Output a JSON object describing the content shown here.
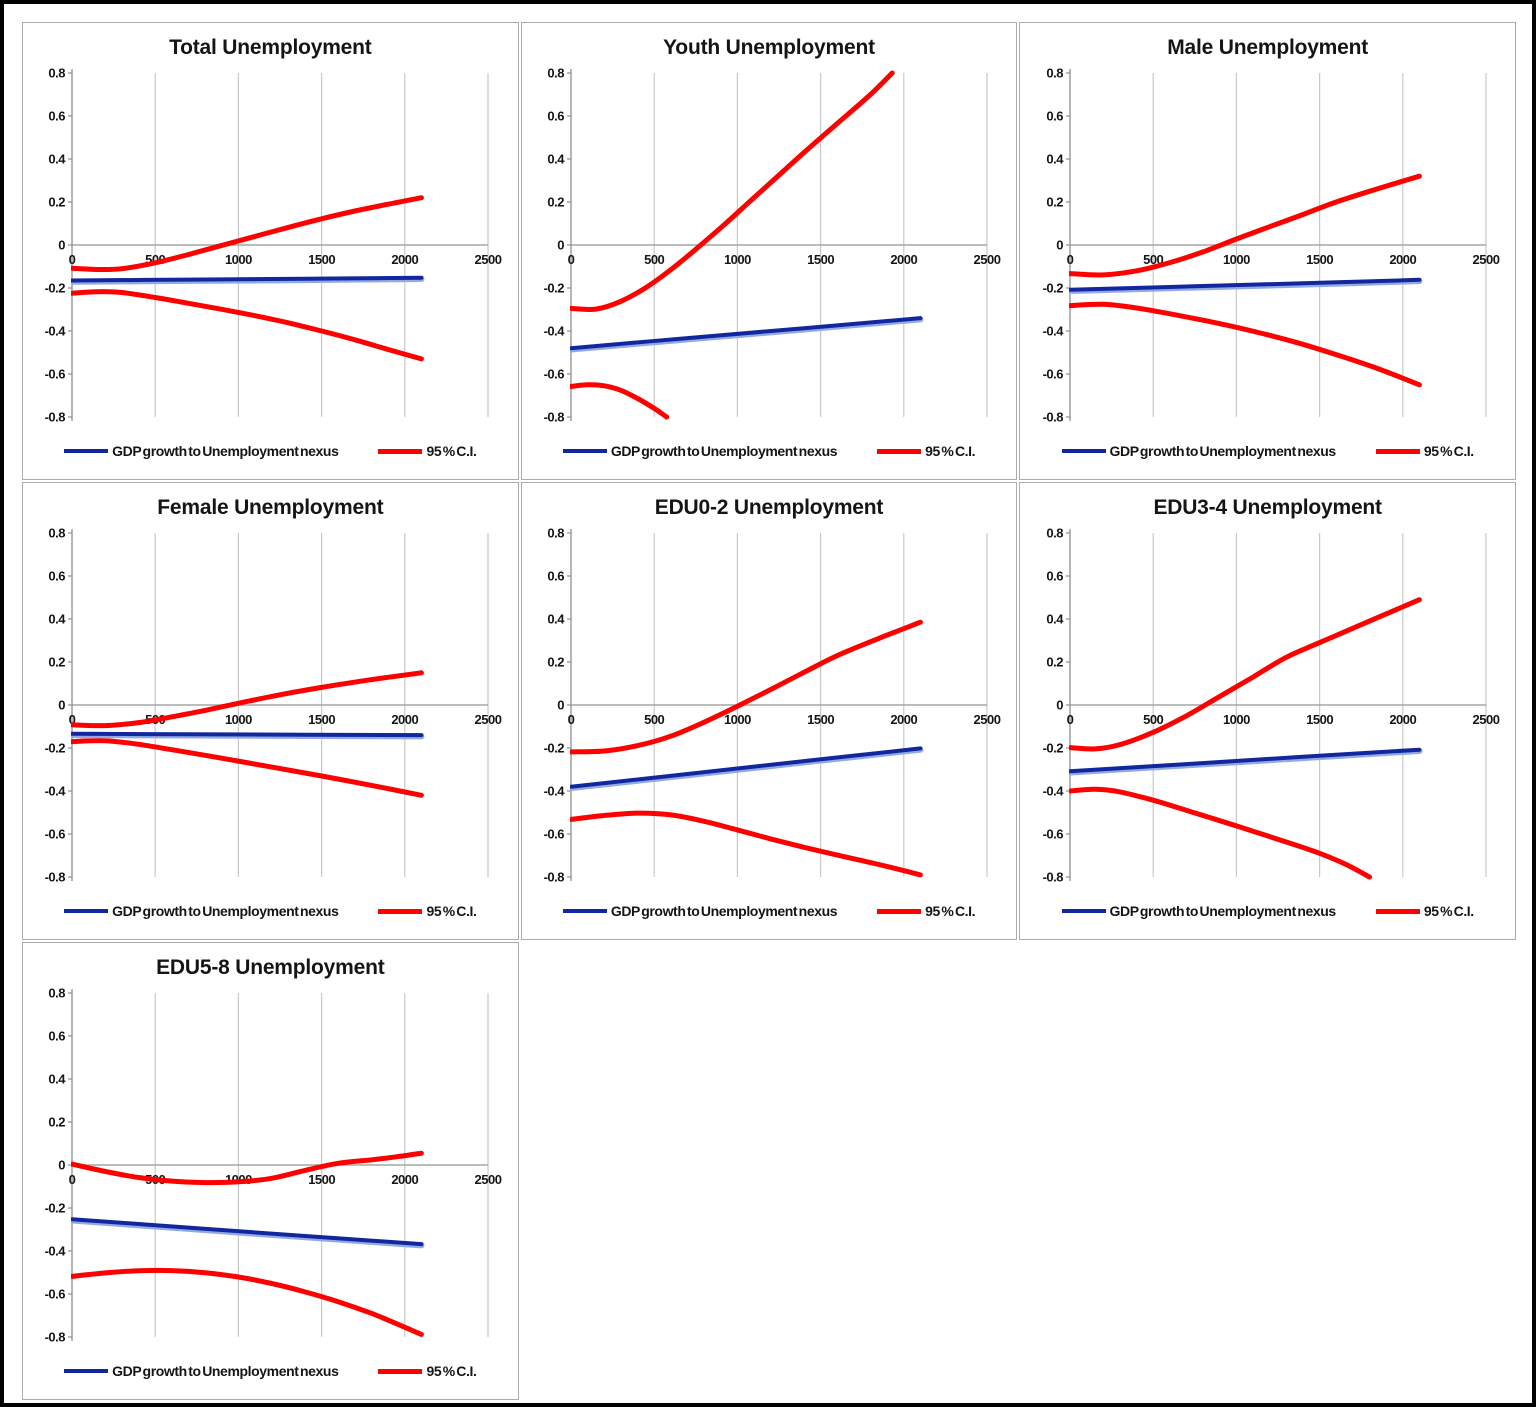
{
  "page": {
    "background": "#ffffff",
    "outer_border_color": "#000000",
    "panel_border_color": "#ababab"
  },
  "legend": {
    "series1_label": "GDP growth to Unemployment nexus",
    "series2_label": "95 % C.I.",
    "series1_color": "#12279e",
    "series2_color": "#fe0000"
  },
  "axes": {
    "xlim": [
      0,
      2500
    ],
    "ylim": [
      -0.8,
      0.8
    ],
    "x_ticks": [
      0,
      500,
      1000,
      1500,
      2000,
      2500
    ],
    "y_ticks": [
      0.8,
      0.6,
      0.4,
      0.2,
      0,
      -0.2,
      -0.4,
      -0.6,
      -0.8
    ],
    "grid": "vertical-gridlines-and-zero-line",
    "gridline_color": "#c9c9c9",
    "axis_color": "#8f8f8f",
    "zero_line_color": "#a6a6a6",
    "tick_label_color": "#151515"
  },
  "chart_data": [
    {
      "type": "line",
      "title": "Total Unemployment",
      "series": [
        {
          "name": "GDP growth to Unemployment nexus",
          "role": "nexus",
          "points": [
            [
              0,
              -0.165
            ],
            [
              700,
              -0.161
            ],
            [
              1400,
              -0.157
            ],
            [
              2100,
              -0.152
            ]
          ]
        },
        {
          "name": "95 % C.I. upper",
          "role": "ci",
          "points": [
            [
              0,
              -0.108
            ],
            [
              150,
              -0.114
            ],
            [
              300,
              -0.11
            ],
            [
              500,
              -0.083
            ],
            [
              700,
              -0.044
            ],
            [
              900,
              -0.002
            ],
            [
              1100,
              0.04
            ],
            [
              1300,
              0.082
            ],
            [
              1500,
              0.122
            ],
            [
              1700,
              0.158
            ],
            [
              1900,
              0.19
            ],
            [
              2100,
              0.22
            ]
          ]
        },
        {
          "name": "95 % C.I. lower",
          "role": "ci",
          "points": [
            [
              0,
              -0.224
            ],
            [
              150,
              -0.217
            ],
            [
              300,
              -0.221
            ],
            [
              500,
              -0.244
            ],
            [
              700,
              -0.271
            ],
            [
              900,
              -0.299
            ],
            [
              1100,
              -0.329
            ],
            [
              1300,
              -0.362
            ],
            [
              1500,
              -0.4
            ],
            [
              1700,
              -0.441
            ],
            [
              1900,
              -0.486
            ],
            [
              2100,
              -0.53
            ]
          ]
        }
      ]
    },
    {
      "type": "line",
      "title": "Youth Unemployment",
      "series": [
        {
          "name": "GDP growth to Unemployment nexus",
          "role": "nexus",
          "points": [
            [
              0,
              -0.48
            ],
            [
              700,
              -0.433
            ],
            [
              1400,
              -0.387
            ],
            [
              2100,
              -0.34
            ]
          ]
        },
        {
          "name": "95 % C.I. upper",
          "role": "ci",
          "points": [
            [
              0,
              -0.295
            ],
            [
              150,
              -0.298
            ],
            [
              300,
              -0.262
            ],
            [
              450,
              -0.198
            ],
            [
              600,
              -0.115
            ],
            [
              750,
              -0.02
            ],
            [
              900,
              0.08
            ],
            [
              1050,
              0.185
            ],
            [
              1200,
              0.29
            ],
            [
              1400,
              0.43
            ],
            [
              1600,
              0.565
            ],
            [
              1800,
              0.7
            ],
            [
              1930,
              0.8
            ]
          ]
        },
        {
          "name": "95 % C.I. lower",
          "role": "ci",
          "points": [
            [
              0,
              -0.658
            ],
            [
              100,
              -0.65
            ],
            [
              200,
              -0.655
            ],
            [
              300,
              -0.676
            ],
            [
              400,
              -0.714
            ],
            [
              500,
              -0.76
            ],
            [
              575,
              -0.8
            ]
          ]
        }
      ]
    },
    {
      "type": "line",
      "title": "Male Unemployment",
      "series": [
        {
          "name": "GDP growth to Unemployment nexus",
          "role": "nexus",
          "points": [
            [
              0,
              -0.208
            ],
            [
              700,
              -0.193
            ],
            [
              1400,
              -0.178
            ],
            [
              2100,
              -0.162
            ]
          ]
        },
        {
          "name": "95 % C.I. upper",
          "role": "ci",
          "points": [
            [
              0,
              -0.133
            ],
            [
              200,
              -0.139
            ],
            [
              400,
              -0.12
            ],
            [
              600,
              -0.082
            ],
            [
              800,
              -0.032
            ],
            [
              1000,
              0.028
            ],
            [
              1200,
              0.085
            ],
            [
              1400,
              0.142
            ],
            [
              1600,
              0.2
            ],
            [
              1850,
              0.262
            ],
            [
              2100,
              0.32
            ]
          ]
        },
        {
          "name": "95 % C.I. lower",
          "role": "ci",
          "points": [
            [
              0,
              -0.282
            ],
            [
              200,
              -0.276
            ],
            [
              400,
              -0.293
            ],
            [
              600,
              -0.32
            ],
            [
              800,
              -0.35
            ],
            [
              1000,
              -0.383
            ],
            [
              1200,
              -0.42
            ],
            [
              1400,
              -0.462
            ],
            [
              1600,
              -0.51
            ],
            [
              1850,
              -0.575
            ],
            [
              2100,
              -0.65
            ]
          ]
        }
      ]
    },
    {
      "type": "line",
      "title": "Female Unemployment",
      "series": [
        {
          "name": "GDP growth to Unemployment nexus",
          "role": "nexus",
          "points": [
            [
              0,
              -0.134
            ],
            [
              700,
              -0.136
            ],
            [
              1400,
              -0.138
            ],
            [
              2100,
              -0.14
            ]
          ]
        },
        {
          "name": "95 % C.I. upper",
          "role": "ci",
          "points": [
            [
              0,
              -0.092
            ],
            [
              200,
              -0.096
            ],
            [
              400,
              -0.082
            ],
            [
              600,
              -0.055
            ],
            [
              800,
              -0.025
            ],
            [
              1000,
              0.008
            ],
            [
              1200,
              0.04
            ],
            [
              1500,
              0.082
            ],
            [
              1800,
              0.118
            ],
            [
              2100,
              0.15
            ]
          ]
        },
        {
          "name": "95 % C.I. lower",
          "role": "ci",
          "points": [
            [
              0,
              -0.17
            ],
            [
              200,
              -0.166
            ],
            [
              400,
              -0.183
            ],
            [
              600,
              -0.208
            ],
            [
              800,
              -0.234
            ],
            [
              1000,
              -0.261
            ],
            [
              1200,
              -0.289
            ],
            [
              1500,
              -0.33
            ],
            [
              1800,
              -0.374
            ],
            [
              2100,
              -0.42
            ]
          ]
        }
      ]
    },
    {
      "type": "line",
      "title": "EDU0-2 Unemployment",
      "series": [
        {
          "name": "GDP growth to Unemployment nexus",
          "role": "nexus",
          "points": [
            [
              0,
              -0.38
            ],
            [
              700,
              -0.321
            ],
            [
              1400,
              -0.261
            ],
            [
              2100,
              -0.202
            ]
          ]
        },
        {
          "name": "95 % C.I. upper",
          "role": "ci",
          "points": [
            [
              0,
              -0.218
            ],
            [
              200,
              -0.214
            ],
            [
              400,
              -0.189
            ],
            [
              600,
              -0.145
            ],
            [
              800,
              -0.08
            ],
            [
              1000,
              -0.006
            ],
            [
              1200,
              0.072
            ],
            [
              1400,
              0.152
            ],
            [
              1600,
              0.23
            ],
            [
              1850,
              0.31
            ],
            [
              2100,
              0.385
            ]
          ]
        },
        {
          "name": "95 % C.I. lower",
          "role": "ci",
          "points": [
            [
              0,
              -0.532
            ],
            [
              200,
              -0.514
            ],
            [
              400,
              -0.503
            ],
            [
              600,
              -0.511
            ],
            [
              800,
              -0.541
            ],
            [
              1000,
              -0.581
            ],
            [
              1200,
              -0.623
            ],
            [
              1400,
              -0.662
            ],
            [
              1600,
              -0.698
            ],
            [
              1850,
              -0.742
            ],
            [
              2100,
              -0.79
            ]
          ]
        }
      ]
    },
    {
      "type": "line",
      "title": "EDU3-4 Unemployment",
      "series": [
        {
          "name": "GDP growth to Unemployment nexus",
          "role": "nexus",
          "points": [
            [
              0,
              -0.308
            ],
            [
              700,
              -0.275
            ],
            [
              1400,
              -0.241
            ],
            [
              2100,
              -0.208
            ]
          ]
        },
        {
          "name": "95 % C.I. upper",
          "role": "ci",
          "points": [
            [
              0,
              -0.198
            ],
            [
              150,
              -0.204
            ],
            [
              300,
              -0.184
            ],
            [
              500,
              -0.127
            ],
            [
              700,
              -0.05
            ],
            [
              900,
              0.04
            ],
            [
              1100,
              0.13
            ],
            [
              1300,
              0.222
            ],
            [
              1500,
              0.29
            ],
            [
              1800,
              0.39
            ],
            [
              2100,
              0.49
            ]
          ]
        },
        {
          "name": "95 % C.I. lower",
          "role": "ci",
          "points": [
            [
              0,
              -0.4
            ],
            [
              150,
              -0.392
            ],
            [
              300,
              -0.404
            ],
            [
              500,
              -0.443
            ],
            [
              700,
              -0.49
            ],
            [
              900,
              -0.538
            ],
            [
              1100,
              -0.587
            ],
            [
              1300,
              -0.637
            ],
            [
              1500,
              -0.69
            ],
            [
              1660,
              -0.742
            ],
            [
              1800,
              -0.8
            ]
          ]
        }
      ]
    },
    {
      "type": "line",
      "title": "EDU5-8 Unemployment",
      "series": [
        {
          "name": "GDP growth to Unemployment nexus",
          "role": "nexus",
          "points": [
            [
              0,
              -0.252
            ],
            [
              700,
              -0.291
            ],
            [
              1400,
              -0.33
            ],
            [
              2100,
              -0.368
            ]
          ]
        },
        {
          "name": "95 % C.I. upper",
          "role": "ci",
          "points": [
            [
              0,
              0.004
            ],
            [
              200,
              -0.03
            ],
            [
              400,
              -0.058
            ],
            [
              600,
              -0.075
            ],
            [
              800,
              -0.082
            ],
            [
              1000,
              -0.078
            ],
            [
              1200,
              -0.062
            ],
            [
              1400,
              -0.025
            ],
            [
              1600,
              0.008
            ],
            [
              1800,
              0.024
            ],
            [
              1950,
              0.038
            ],
            [
              2100,
              0.055
            ]
          ]
        },
        {
          "name": "95 % C.I. lower",
          "role": "ci",
          "points": [
            [
              0,
              -0.518
            ],
            [
              200,
              -0.502
            ],
            [
              400,
              -0.492
            ],
            [
              600,
              -0.491
            ],
            [
              800,
              -0.501
            ],
            [
              1000,
              -0.521
            ],
            [
              1200,
              -0.551
            ],
            [
              1400,
              -0.59
            ],
            [
              1600,
              -0.636
            ],
            [
              1800,
              -0.69
            ],
            [
              1950,
              -0.738
            ],
            [
              2100,
              -0.788
            ]
          ]
        }
      ]
    }
  ]
}
